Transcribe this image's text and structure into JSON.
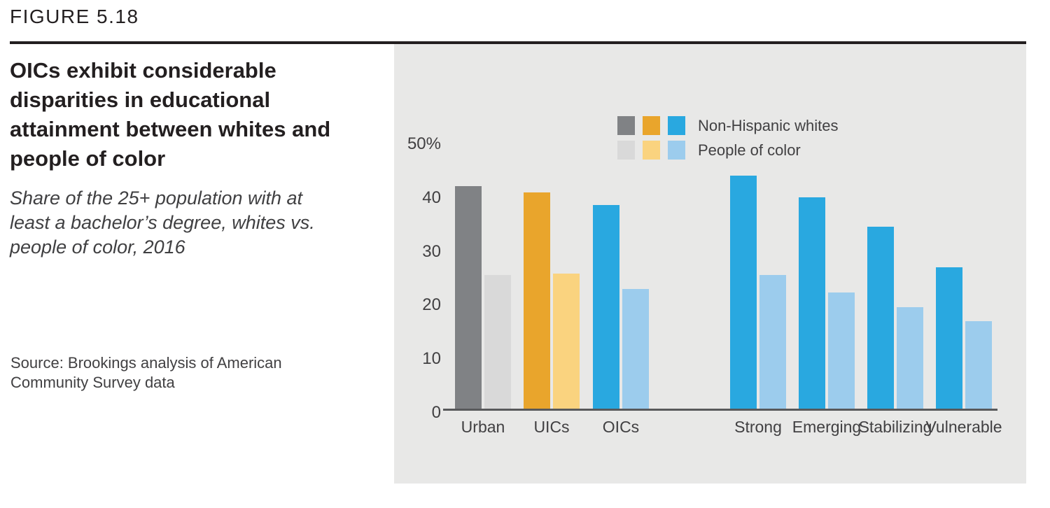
{
  "header": {
    "figure_label": "FIGURE 5.18"
  },
  "source": {
    "text": "Source: Brookings analysis of American Community Survey data"
  },
  "colors": {
    "panel_background": "#e8e8e7",
    "header_rule": "#231f20",
    "axis_line": "#58595b",
    "title_text": "#231f20",
    "body_text": "#414042"
  },
  "chart_data": {
    "type": "bar",
    "title": "OICs exhibit considerable disparities in educational attainment between whites and people of color",
    "subtitle": "Share of the 25+ population with at least a bachelor’s degree, whites vs. people of color, 2016",
    "categories": [
      "Urban",
      "UICs",
      "OICs",
      "Strong",
      "Emerging",
      "Stabilizing",
      "Vulnerable"
    ],
    "series": [
      {
        "name": "Non-Hispanic whites",
        "values": [
          41.4,
          40.3,
          37.9,
          43.4,
          39.3,
          33.9,
          26.4
        ],
        "colors": [
          "#808285",
          "#e9a52c",
          "#29a8e0",
          "#29a8e0",
          "#29a8e0",
          "#29a8e0",
          "#29a8e0"
        ]
      },
      {
        "name": "People of color",
        "values": [
          25.0,
          25.2,
          22.3,
          24.9,
          21.7,
          19.0,
          16.4
        ],
        "colors": [
          "#d9d9d9",
          "#fad37f",
          "#9ccced",
          "#9ccced",
          "#9ccced",
          "#9ccced",
          "#9ccced"
        ]
      }
    ],
    "y_axis": {
      "range": [
        0,
        50
      ],
      "unit": "%",
      "ticks": [
        {
          "label": "50%",
          "value": 50
        },
        {
          "label": "40",
          "value": 40
        },
        {
          "label": "30",
          "value": 30
        },
        {
          "label": "20",
          "value": 20
        },
        {
          "label": "10",
          "value": 10
        },
        {
          "label": "0",
          "value": 0
        }
      ]
    },
    "grid": false,
    "legend": {
      "position": "top-right",
      "entries": [
        {
          "label": "Non-Hispanic whites",
          "swatches": [
            "#808285",
            "#e9a52c",
            "#29a8e0"
          ]
        },
        {
          "label": "People of color",
          "swatches": [
            "#d9d9d9",
            "#fad37f",
            "#9ccced"
          ]
        }
      ]
    }
  }
}
